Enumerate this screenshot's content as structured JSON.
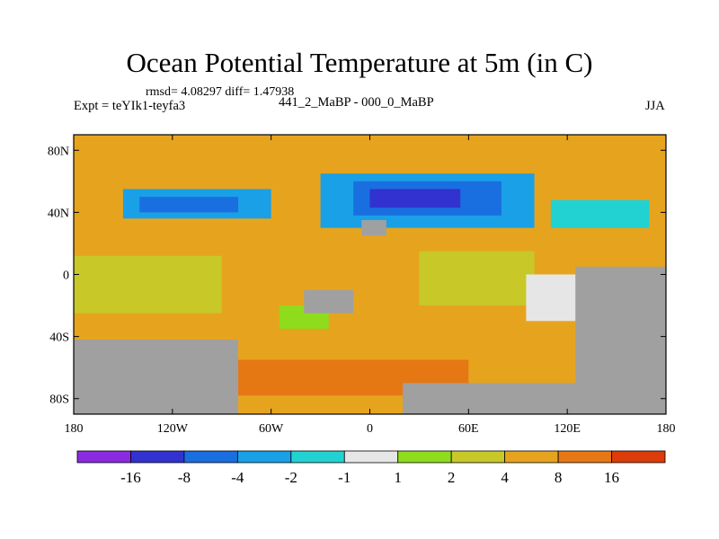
{
  "chart_data": {
    "type": "heatmap",
    "title": "Ocean Potential Temperature at 5m (in C)",
    "stats": "rmsd= 4.08297 diff= 1.47938",
    "experiment": "Expt = teYIk1-teyfa3",
    "comparison": "441_2_MaBP - 000_0_MaBP",
    "season": "JJA",
    "x_ticks": [
      {
        "value": -180,
        "label": "180"
      },
      {
        "value": -120,
        "label": "120W"
      },
      {
        "value": -60,
        "label": "60W"
      },
      {
        "value": 0,
        "label": "0"
      },
      {
        "value": 60,
        "label": "60E"
      },
      {
        "value": 120,
        "label": "120E"
      },
      {
        "value": 180,
        "label": "180"
      }
    ],
    "y_ticks": [
      {
        "value": 80,
        "label": "80N"
      },
      {
        "value": 40,
        "label": "40N"
      },
      {
        "value": 0,
        "label": "0"
      },
      {
        "value": -40,
        "label": "40S"
      },
      {
        "value": -80,
        "label": "80S"
      }
    ],
    "xlim": [
      -180,
      180
    ],
    "ylim": [
      -90,
      90
    ],
    "colorbar": {
      "colors": [
        "#8a2be2",
        "#3232d0",
        "#1a6fe0",
        "#1aa0e6",
        "#22d2d2",
        "#e6e6e6",
        "#8fdc1c",
        "#c8c828",
        "#e6a41e",
        "#e67814",
        "#dc3c0a"
      ],
      "labels": [
        "-16",
        "-8",
        "-4",
        "-2",
        "-1",
        "1",
        "2",
        "4",
        "8",
        "16"
      ],
      "levels": [
        -16,
        -8,
        -4,
        -2,
        -1,
        1,
        2,
        4,
        8,
        16
      ]
    },
    "land_color": "#a0a0a0",
    "regions": [
      {
        "name": "north-polar-band",
        "color": "#e6a41e",
        "lon": [
          -180,
          180
        ],
        "lat": [
          68,
          90
        ]
      },
      {
        "name": "north-pacific-cold",
        "color": "#1aa0e6",
        "lon": [
          -150,
          -60
        ],
        "lat": [
          36,
          55
        ]
      },
      {
        "name": "north-pacific-core",
        "color": "#1a6fe0",
        "lon": [
          -140,
          -80
        ],
        "lat": [
          40,
          50
        ]
      },
      {
        "name": "north-atlantic-cold",
        "color": "#1aa0e6",
        "lon": [
          -30,
          100
        ],
        "lat": [
          30,
          65
        ]
      },
      {
        "name": "north-atlantic-core",
        "color": "#1a6fe0",
        "lon": [
          -10,
          80
        ],
        "lat": [
          38,
          60
        ]
      },
      {
        "name": "north-atlantic-coldest",
        "color": "#3232d0",
        "lon": [
          0,
          55
        ],
        "lat": [
          43,
          55
        ]
      },
      {
        "name": "east-pacific-cool",
        "color": "#22d2d2",
        "lon": [
          110,
          170
        ],
        "lat": [
          30,
          48
        ]
      },
      {
        "name": "tropical-yellow-west",
        "color": "#c8c828",
        "lon": [
          -180,
          -90
        ],
        "lat": [
          -25,
          12
        ]
      },
      {
        "name": "tropical-yellow-east",
        "color": "#c8c828",
        "lon": [
          30,
          100
        ],
        "lat": [
          -20,
          15
        ]
      },
      {
        "name": "southern-ocean-warm",
        "color": "#e67814",
        "lon": [
          -100,
          60
        ],
        "lat": [
          -78,
          -55
        ]
      },
      {
        "name": "south-atlantic-green",
        "color": "#8fdc1c",
        "lon": [
          -55,
          -25
        ],
        "lat": [
          -35,
          -20
        ]
      },
      {
        "name": "south-indian-white",
        "color": "#e6e6e6",
        "lon": [
          95,
          125
        ],
        "lat": [
          -30,
          0
        ]
      }
    ],
    "land": [
      {
        "name": "land-south-america-pacific",
        "lon": [
          -180,
          -80
        ],
        "lat": [
          -90,
          -42
        ]
      },
      {
        "name": "land-australia-east",
        "lon": [
          125,
          180
        ],
        "lat": [
          -90,
          5
        ]
      },
      {
        "name": "land-antarctic",
        "lon": [
          20,
          125
        ],
        "lat": [
          -90,
          -70
        ]
      },
      {
        "name": "land-africa-patch",
        "lon": [
          -40,
          -10
        ],
        "lat": [
          -25,
          -10
        ]
      },
      {
        "name": "land-europe-patch",
        "lon": [
          -5,
          10
        ],
        "lat": [
          25,
          35
        ]
      }
    ]
  }
}
